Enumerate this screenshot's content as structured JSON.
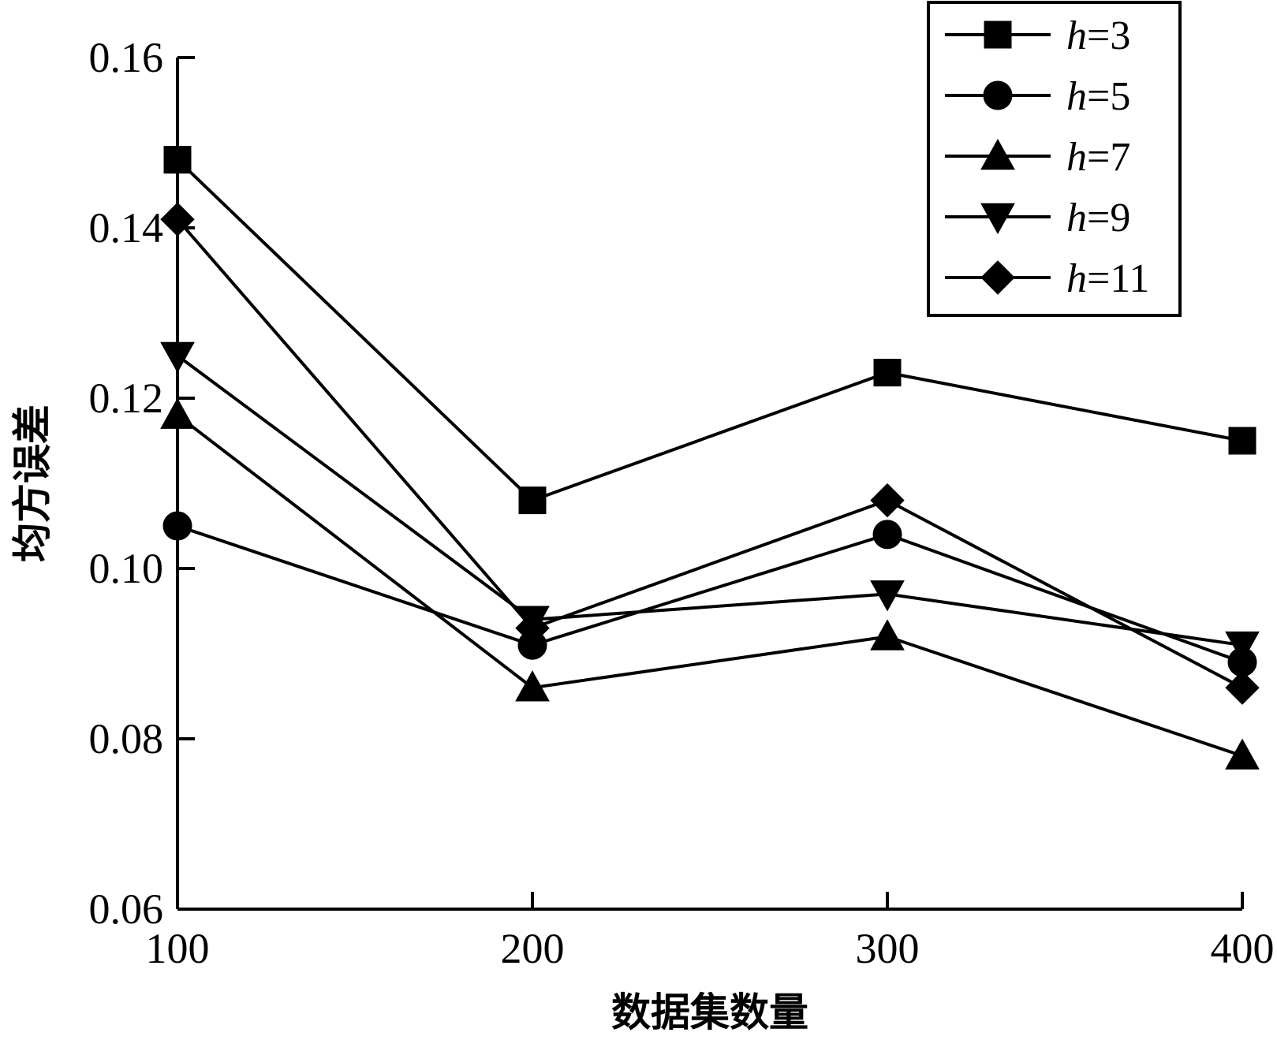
{
  "chart_data": {
    "type": "line",
    "x": [
      100,
      200,
      300,
      400
    ],
    "xlabel": "数据集数量",
    "ylabel": "均方误差",
    "xlim": [
      100,
      400
    ],
    "ylim": [
      0.06,
      0.16
    ],
    "xticks": [
      "100",
      "200",
      "300",
      "400"
    ],
    "yticks": [
      "0.06",
      "0.08",
      "0.10",
      "0.12",
      "0.14",
      "0.16"
    ],
    "grid": false,
    "legend_position": "top-right",
    "series": [
      {
        "name": "h=3",
        "var": "h",
        "eq": "=3",
        "marker": "square",
        "values": [
          0.148,
          0.108,
          0.123,
          0.115
        ]
      },
      {
        "name": "h=5",
        "var": "h",
        "eq": "=5",
        "marker": "circle",
        "values": [
          0.105,
          0.091,
          0.104,
          0.089
        ]
      },
      {
        "name": "h=7",
        "var": "h",
        "eq": "=7",
        "marker": "triangle-up",
        "values": [
          0.118,
          0.086,
          0.092,
          0.078
        ]
      },
      {
        "name": "h=9",
        "var": "h",
        "eq": "=9",
        "marker": "triangle-down",
        "values": [
          0.125,
          0.094,
          0.097,
          0.091
        ]
      },
      {
        "name": "h=11",
        "var": "h",
        "eq": "=11",
        "marker": "diamond",
        "values": [
          0.141,
          0.093,
          0.108,
          0.086
        ]
      }
    ]
  }
}
